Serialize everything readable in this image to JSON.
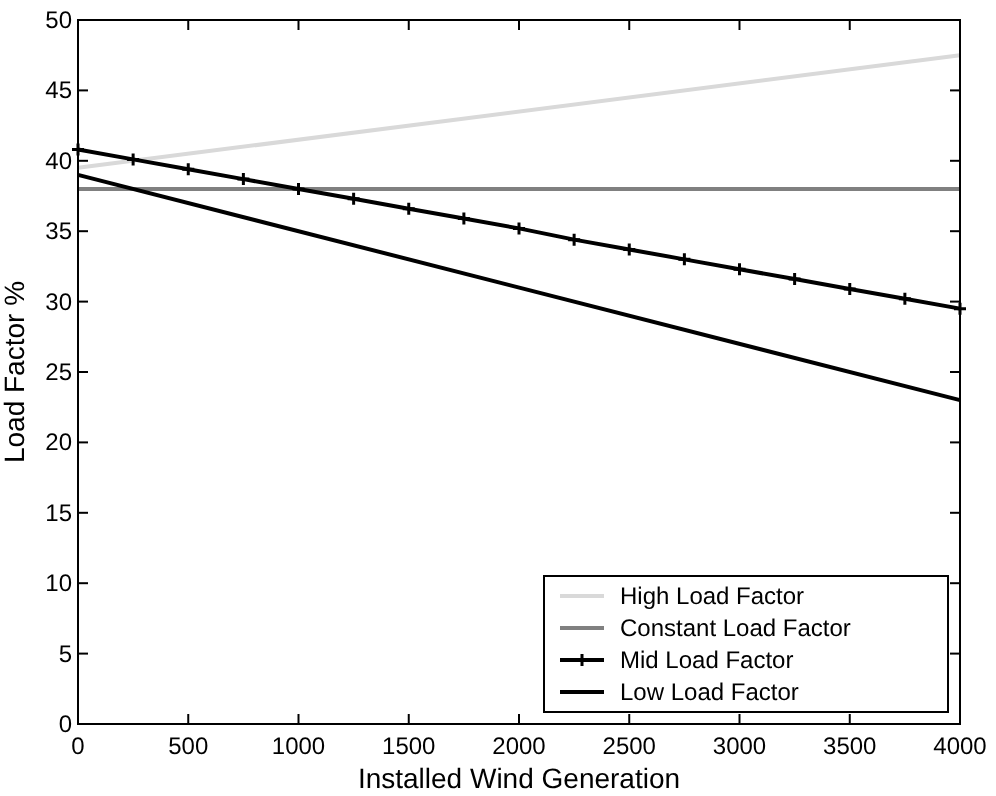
{
  "chart_data": {
    "type": "line",
    "xlabel": "Installed Wind Generation",
    "ylabel": "Load Factor %",
    "xlim": [
      0,
      4000
    ],
    "ylim": [
      0,
      50
    ],
    "xticks": [
      0,
      500,
      1000,
      1500,
      2000,
      2500,
      3000,
      3500,
      4000
    ],
    "yticks": [
      0,
      5,
      10,
      15,
      20,
      25,
      30,
      35,
      40,
      45,
      50
    ],
    "grid": false,
    "legend": "bottom right",
    "series": [
      {
        "name": "High Load Factor",
        "color": "#d9d9d9",
        "x": [
          0,
          4000
        ],
        "values": [
          39.5,
          47.5
        ],
        "marker": "none"
      },
      {
        "name": "Constant Load Factor",
        "color": "#808080",
        "x": [
          0,
          4000
        ],
        "values": [
          38,
          38
        ],
        "marker": "none"
      },
      {
        "name": "Mid Load Factor",
        "color": "#000000",
        "x": [
          0,
          250,
          500,
          750,
          1000,
          1250,
          1500,
          1750,
          2000,
          2250,
          2500,
          2750,
          3000,
          3250,
          3500,
          3750,
          4000
        ],
        "values": [
          40.8,
          40.1,
          39.4,
          38.7,
          38.0,
          37.3,
          36.6,
          35.9,
          35.2,
          34.4,
          33.7,
          33.0,
          32.3,
          31.6,
          30.9,
          30.2,
          29.5
        ],
        "marker": "cross"
      },
      {
        "name": "Low Load Factor",
        "color": "#000000",
        "x": [
          0,
          4000
        ],
        "values": [
          39,
          23
        ],
        "marker": "none"
      }
    ]
  }
}
